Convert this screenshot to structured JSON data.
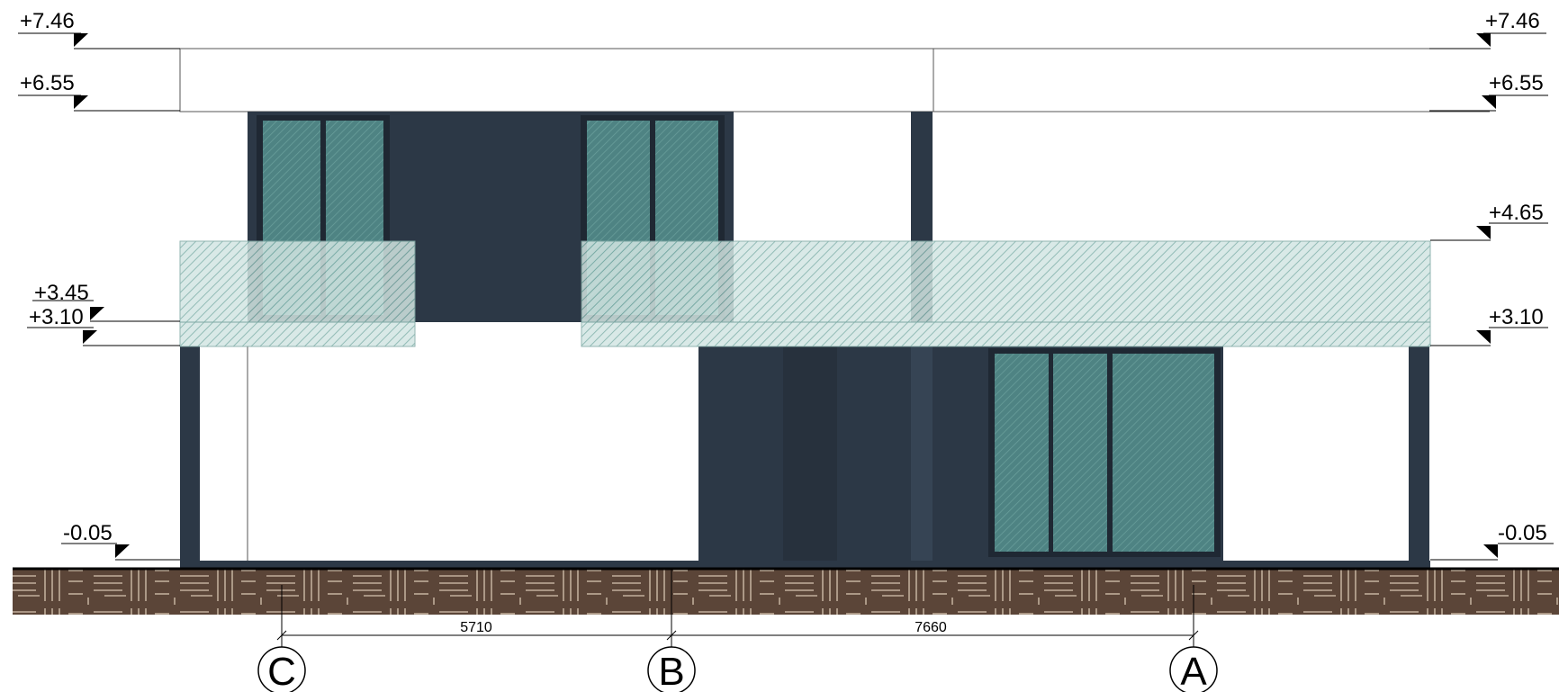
{
  "levels": {
    "left": [
      "+7.46",
      "+6.55",
      "+3.45",
      "+3.10",
      "-0.05"
    ],
    "right": [
      "+7.46",
      "+6.55",
      "+4.65",
      "+3.10",
      "-0.05"
    ]
  },
  "dimensions": [
    "5710",
    "7660"
  ],
  "axes": [
    "C",
    "B",
    "A"
  ],
  "colors": {
    "dark_panel": "#2c3846",
    "glass": "#4e8484",
    "glass_hatch": "#5a9494",
    "railing": "#cfe3e0",
    "ground": "#5b4538",
    "ground_line": "#d6c4b0"
  }
}
